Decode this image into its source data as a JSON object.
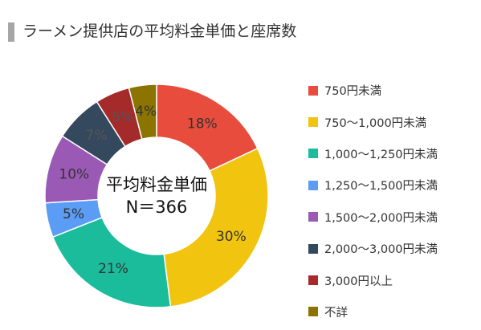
{
  "title": "ラーメン提供店の平均料金単価と座席数",
  "chart_data": {
    "type": "pie",
    "donut": true,
    "center_label": [
      "平均料金単価",
      "N＝366"
    ],
    "categories": [
      "750円未満",
      "750〜1,000円未満",
      "1,000〜1,250円未満",
      "1,250〜1,500円未満",
      "1,500〜2,000円未満",
      "2,000〜3,000円未満",
      "3,000円以上",
      "不詳"
    ],
    "values": [
      18,
      30,
      21,
      5,
      10,
      7,
      5,
      4
    ],
    "labels": [
      "18%",
      "30%",
      "21%",
      "5%",
      "10%",
      "7%",
      "5%",
      "4%"
    ],
    "colors": [
      "#e74c3c",
      "#f1c40f",
      "#1abc9c",
      "#5b9cf5",
      "#9b59b6",
      "#34495e",
      "#a52a2a",
      "#8b7500"
    ],
    "legend_position": "right"
  }
}
